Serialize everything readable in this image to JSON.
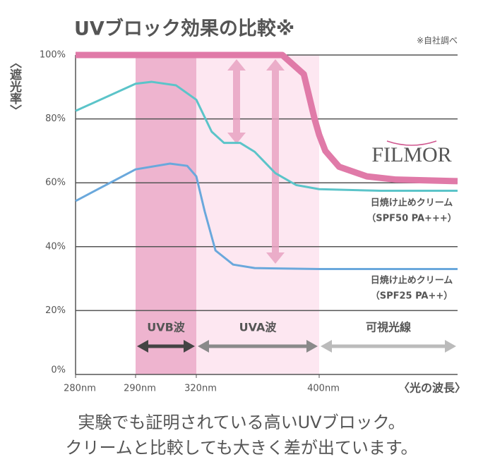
{
  "chart_data": {
    "type": "line",
    "title": "UVブロック効果の比較※",
    "note": "※自社調べ",
    "ylabel": "〈遮光率〉",
    "xlabel": "〈光の波長〉",
    "xlim": [
      280,
      490
    ],
    "xticks": [
      {
        "value": 280,
        "label": "280nm"
      },
      {
        "value": 290,
        "label": "290nm"
      },
      {
        "value": 320,
        "label": "320nm"
      },
      {
        "value": 400,
        "label": "400nm"
      }
    ],
    "ylim": [
      0,
      100
    ],
    "yticks": [
      {
        "value": 0,
        "label": "0%"
      },
      {
        "value": 20,
        "label": "20%"
      },
      {
        "value": 40,
        "label": "40%"
      },
      {
        "value": 60,
        "label": "60%"
      },
      {
        "value": 80,
        "label": "80%"
      },
      {
        "value": 100,
        "label": "100%"
      }
    ],
    "grid": true,
    "bands": [
      {
        "label": "UVB波",
        "from": 290,
        "to": 320,
        "fill": "#eeb4cf",
        "arrow_color": "#444444"
      },
      {
        "label": "UVA波",
        "from": 320,
        "to": 400,
        "fill": "#fde7f1",
        "arrow_color": "#8a8a8a"
      },
      {
        "label": "可視光線",
        "from": 400,
        "to": 490,
        "arrow_color": "#bbbbbb"
      }
    ],
    "series": [
      {
        "name": "FILMOR",
        "color": "#e07aa8",
        "width": 9,
        "x": [
          280,
          300,
          320,
          350,
          376,
          390,
          397,
          400,
          404,
          413,
          431,
          450,
          490
        ],
        "values": [
          100,
          100,
          100,
          100,
          100,
          94,
          80,
          75,
          70,
          65,
          62,
          61,
          60.5
        ]
      },
      {
        "name": "日焼け止めクリーム",
        "spec": "（SPF50 PA+++）",
        "color": "#5bc4c9",
        "width": 3,
        "x": [
          280,
          290,
          298,
          310,
          320,
          330,
          338,
          348.5,
          358,
          371.5,
          385,
          400,
          440,
          490
        ],
        "values": [
          82.5,
          91,
          91.6,
          90.5,
          86,
          76,
          72.5,
          72.5,
          69.7,
          63,
          59.3,
          58,
          57.5,
          57.5
        ]
      },
      {
        "name": "日焼け止めクリーム",
        "spec": "（SPF25 PA++）",
        "color": "#6aa8dc",
        "width": 3,
        "x": [
          280,
          290,
          307,
          315.5,
          320,
          325.5,
          332.5,
          344,
          358,
          400,
          490
        ],
        "values": [
          54.3,
          64.2,
          66,
          65.3,
          62,
          51,
          38.8,
          34.4,
          33.3,
          33,
          33
        ]
      }
    ],
    "caption": [
      "実験でも証明されている高いUVブロック。",
      "クリームと比較しても大きく差が出ています。"
    ]
  }
}
